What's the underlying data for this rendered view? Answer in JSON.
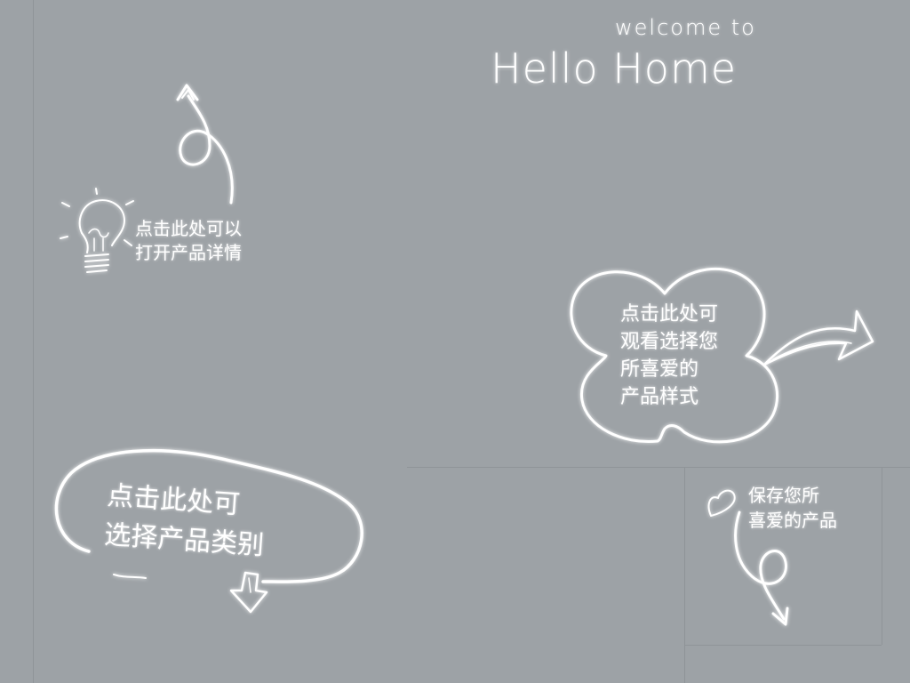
{
  "header": {
    "welcome": "welcome to",
    "title": "Hello Home"
  },
  "hints": {
    "product_detail": [
      "点击此处可以",
      "打开产品详情"
    ],
    "view_style": [
      "点击此处可",
      "观看选择您",
      "所喜爱的",
      "产品样式"
    ],
    "category": [
      "点击此处可",
      "选择产品类别"
    ],
    "save": [
      "保存您所",
      "喜爱的产品"
    ]
  },
  "icons": {
    "lightbulb": "lightbulb-icon",
    "heart": "heart-icon",
    "arrow_up": "curly-arrow-up-icon",
    "arrow_right": "arrow-right-icon",
    "arrow_down": "arrow-down-icon",
    "curly_arrow_down": "curly-arrow-down-icon"
  },
  "colors": {
    "background": "#9da2a6",
    "ink": "#ffffff"
  }
}
